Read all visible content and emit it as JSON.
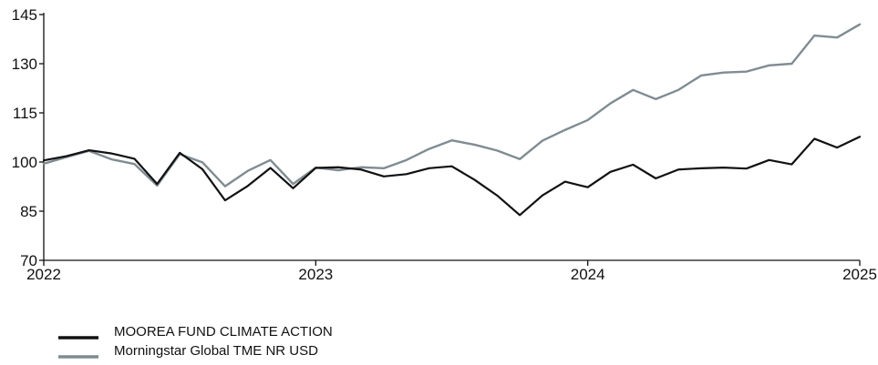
{
  "chart_data": {
    "type": "line",
    "x_start": "2022-01",
    "x_step": "month",
    "xlim": [
      "2022-01",
      "2025-01"
    ],
    "ylim": [
      70,
      145
    ],
    "yticks": [
      70,
      85,
      100,
      115,
      130,
      145
    ],
    "xticks": [
      {
        "date": "2022-01",
        "label": "2022"
      },
      {
        "date": "2023-01",
        "label": "2023"
      },
      {
        "date": "2024-01",
        "label": "2024"
      },
      {
        "date": "2025-01",
        "label": "2025"
      }
    ],
    "grid": false,
    "legend_position": "bottom-left",
    "series": [
      {
        "name": "MOOREA FUND CLIMATE ACTION",
        "color": "#111111",
        "values": [
          100.5,
          101.8,
          103.6,
          102.6,
          101.0,
          93.3,
          102.8,
          97.8,
          88.3,
          92.7,
          98.2,
          92.0,
          98.2,
          98.4,
          97.7,
          95.6,
          96.3,
          98.1,
          98.7,
          94.6,
          89.8,
          83.8,
          89.8,
          94.0,
          92.3,
          97.0,
          99.2,
          95.0,
          97.7,
          98.1,
          98.3,
          98.0,
          100.6,
          99.3,
          107.1,
          104.4,
          107.7
        ]
      },
      {
        "name": "Morningstar Global TME NR USD",
        "color": "#7f8c92",
        "values": [
          99.5,
          101.5,
          103.4,
          100.8,
          99.4,
          92.8,
          102.4,
          99.9,
          92.6,
          97.3,
          100.6,
          93.3,
          98.3,
          97.5,
          98.4,
          98.1,
          100.6,
          104.0,
          106.6,
          105.3,
          103.5,
          100.9,
          106.5,
          109.8,
          112.8,
          117.9,
          122.0,
          119.2,
          122.0,
          126.4,
          127.3,
          127.6,
          129.5,
          130.0,
          138.6,
          138.0,
          142.0
        ]
      }
    ]
  }
}
